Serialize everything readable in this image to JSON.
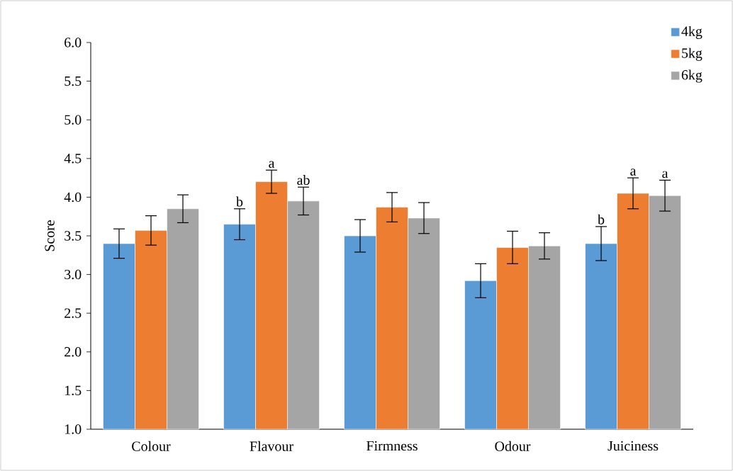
{
  "chart_data": {
    "type": "bar",
    "ylabel": "Score",
    "categories": [
      "Colour",
      "Flavour",
      "Firmness",
      "Odour",
      "Juiciness"
    ],
    "series": [
      {
        "name": "4kg",
        "color": "#5b9bd5",
        "values": [
          3.4,
          3.65,
          3.5,
          2.92,
          3.4
        ],
        "errors": [
          0.19,
          0.2,
          0.21,
          0.22,
          0.22
        ],
        "value_labels": [
          null,
          "b",
          null,
          null,
          "b"
        ]
      },
      {
        "name": "5kg",
        "color": "#ed7d31",
        "values": [
          3.57,
          4.2,
          3.87,
          3.35,
          4.05
        ],
        "errors": [
          0.19,
          0.15,
          0.19,
          0.21,
          0.2
        ],
        "value_labels": [
          null,
          "a",
          null,
          null,
          "a"
        ]
      },
      {
        "name": "6kg",
        "color": "#a5a5a5",
        "values": [
          3.85,
          3.95,
          3.73,
          3.37,
          4.02
        ],
        "errors": [
          0.18,
          0.18,
          0.2,
          0.17,
          0.2
        ],
        "value_labels": [
          null,
          "ab",
          null,
          null,
          "a"
        ]
      }
    ],
    "ylim": [
      1,
      6
    ],
    "yticks": [
      {
        "value": 1,
        "label": "1.0"
      },
      {
        "value": 1.5,
        "label": "1.5"
      },
      {
        "value": 2,
        "label": "2.0"
      },
      {
        "value": 2.5,
        "label": "2.5"
      },
      {
        "value": 3,
        "label": "3.0"
      },
      {
        "value": 3.5,
        "label": "3.5"
      },
      {
        "value": 4,
        "label": "4.0"
      },
      {
        "value": 4.5,
        "label": "4.5"
      },
      {
        "value": 5,
        "label": "5.0"
      },
      {
        "value": 5.5,
        "label": "5.5"
      },
      {
        "value": 6,
        "label": "6.0"
      }
    ],
    "legend": "top right",
    "grid": false
  }
}
